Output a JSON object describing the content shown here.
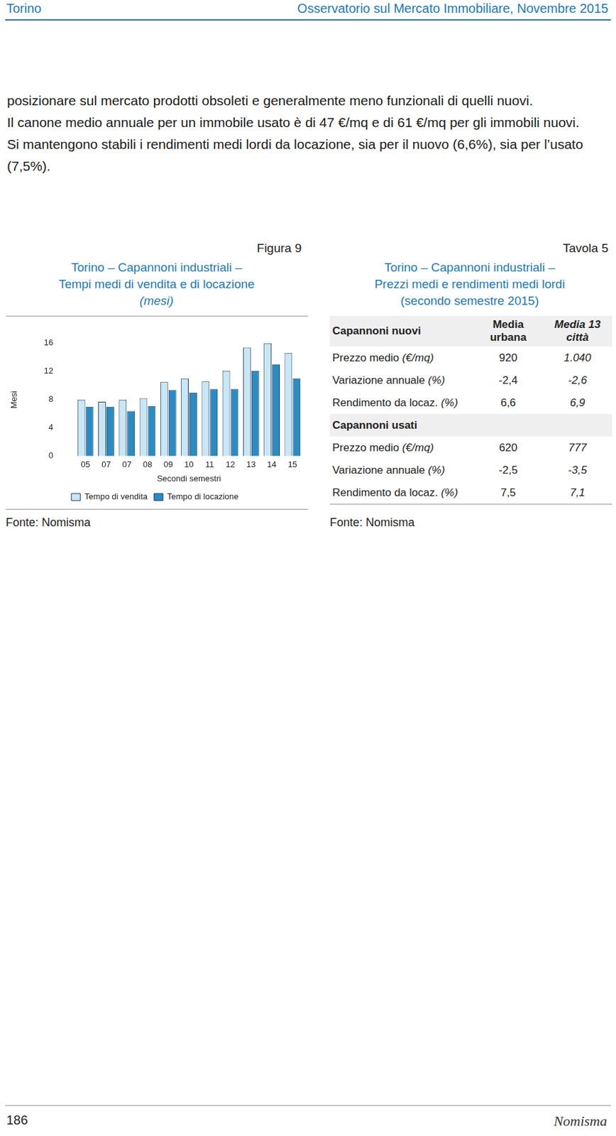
{
  "header": {
    "left": "Torino",
    "right": "Osservatorio sul Mercato Immobiliare, Novembre 2015"
  },
  "paragraphs": [
    "posizionare sul mercato prodotti obsoleti e generalmente meno funzionali di quelli nuovi.",
    "Il canone medio annuale per un immobile usato è di 47 €/mq e di 61 €/mq per gli immobili nuovi.",
    "Si mantengono stabili i rendimenti medi lordi da locazione, sia per il nuovo (6,6%), sia per l’usato (7,5%)."
  ],
  "chart_data": {
    "type": "bar",
    "label": "Figura 9",
    "title": [
      "Torino – Capannoni industriali –",
      "Tempi medi di vendita e di locazione"
    ],
    "subtitle": "(mesi)",
    "x_label": "Secondi semestri",
    "y_label": "Mesi",
    "categories": [
      "05",
      "07",
      "07",
      "08",
      "09",
      "10",
      "11",
      "12",
      "13",
      "14",
      "15"
    ],
    "series": [
      {
        "name": "Tempo di vendita",
        "color": "#c9e6f7",
        "values": [
          8.0,
          7.7,
          8.0,
          8.2,
          10.5,
          11.0,
          10.6,
          12.1,
          15.4,
          16.0,
          14.6
        ]
      },
      {
        "name": "Tempo di locazione",
        "color": "#2b8cc4",
        "values": [
          7.0,
          7.0,
          6.4,
          7.1,
          9.4,
          9.0,
          9.5,
          9.5,
          12.1,
          13.0,
          11.0
        ]
      }
    ],
    "ylim": [
      0,
      16
    ],
    "yticks": [
      0,
      4,
      8,
      12,
      16
    ],
    "grid": false,
    "legend": "bottom",
    "source": "Fonte: Nomisma"
  },
  "table": {
    "label": "Tavola 5",
    "title": [
      "Torino – Capannoni industriali –",
      "Prezzi medi e rendimenti medi lordi",
      "(secondo semestre 2015)"
    ],
    "columns": [
      "Media urbana",
      "Media 13 città"
    ],
    "sections": [
      {
        "name": "Capannoni nuovi",
        "rows": [
          {
            "label": "Prezzo medio",
            "unit": "(€/mq)",
            "values": [
              "920",
              "1.040"
            ]
          },
          {
            "label": "Variazione annuale",
            "unit": "(%)",
            "values": [
              "-2,4",
              "-2,6"
            ]
          },
          {
            "label": "Rendimento da locaz.",
            "unit": "(%)",
            "values": [
              "6,6",
              "6,9"
            ]
          }
        ]
      },
      {
        "name": "Capannoni usati",
        "rows": [
          {
            "label": "Prezzo medio",
            "unit": "(€/mq)",
            "values": [
              "620",
              "777"
            ]
          },
          {
            "label": "Variazione annuale",
            "unit": "(%)",
            "values": [
              "-2,5",
              "-3,5"
            ]
          },
          {
            "label": "Rendimento da locaz.",
            "unit": "(%)",
            "values": [
              "7,5",
              "7,1"
            ]
          }
        ]
      }
    ],
    "source": "Fonte: Nomisma"
  },
  "footer": {
    "page": "186",
    "brand": "Nomisma"
  }
}
